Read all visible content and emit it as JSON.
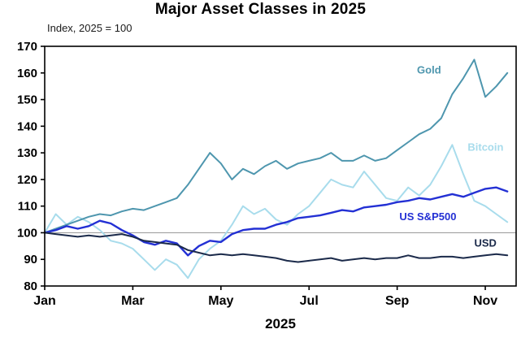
{
  "chart_data": {
    "type": "line",
    "title": "Major Asset Classes in 2025",
    "subtitle": "Index, 2025 = 100",
    "xlabel": "2025",
    "ylim": [
      80,
      170
    ],
    "yticks": [
      80,
      90,
      100,
      110,
      120,
      130,
      140,
      150,
      160,
      170
    ],
    "xlim": [
      0,
      10.7
    ],
    "x_unit": "months since Jan 1 2025 (0.25 step, approx weekly)",
    "xticks": [
      {
        "pos": 0,
        "label": "Jan"
      },
      {
        "pos": 2,
        "label": "Mar"
      },
      {
        "pos": 4,
        "label": "May"
      },
      {
        "pos": 6,
        "label": "Jul"
      },
      {
        "pos": 8,
        "label": "Sep"
      },
      {
        "pos": 10,
        "label": "Nov"
      }
    ],
    "reference_line": 100,
    "grid": "single horizontal line at 100 only",
    "legend_position": "inline labels near line ends",
    "x": [
      0,
      0.25,
      0.5,
      0.75,
      1,
      1.25,
      1.5,
      1.75,
      2,
      2.25,
      2.5,
      2.75,
      3,
      3.25,
      3.5,
      3.75,
      4,
      4.25,
      4.5,
      4.75,
      5,
      5.25,
      5.5,
      5.75,
      6,
      6.25,
      6.5,
      6.75,
      7,
      7.25,
      7.5,
      7.75,
      8,
      8.25,
      8.5,
      8.75,
      9,
      9.25,
      9.5,
      9.75,
      10,
      10.25,
      10.5
    ],
    "series": [
      {
        "name": "Bitcoin",
        "color": "#a8dcec",
        "width": 2,
        "label": {
          "x": 9.6,
          "y": 132
        },
        "values": [
          100,
          107,
          103,
          106,
          104,
          101,
          97,
          96,
          94,
          90,
          86,
          90,
          88,
          83,
          90,
          94,
          97,
          103,
          110,
          107,
          109,
          105,
          103,
          107,
          110,
          115,
          120,
          118,
          117,
          123,
          118,
          113,
          112,
          117,
          114,
          118,
          125,
          133,
          122,
          112,
          110,
          107,
          104
        ]
      },
      {
        "name": "Gold",
        "color": "#4e96ae",
        "width": 2,
        "label": {
          "x": 8.45,
          "y": 161
        },
        "values": [
          100,
          101.5,
          103,
          104.5,
          106,
          107,
          106.5,
          108,
          109,
          108.5,
          110,
          111.5,
          113,
          118,
          124,
          130,
          126,
          120,
          124,
          122,
          125,
          127,
          124,
          126,
          127,
          128,
          130,
          127,
          127,
          129,
          127,
          128,
          131,
          134,
          137,
          139,
          143,
          152,
          158,
          165,
          151,
          155,
          160
        ]
      },
      {
        "name": "US S&P500",
        "color": "#2330d4",
        "width": 2.4,
        "label": {
          "x": 8.05,
          "y": 106
        },
        "values": [
          100,
          101,
          102.5,
          101.5,
          102.5,
          104.5,
          103.5,
          101,
          99,
          96.5,
          95.5,
          97,
          96,
          91.5,
          95,
          97,
          96.5,
          99.5,
          101,
          101.5,
          101.5,
          103,
          104,
          105.5,
          106,
          106.5,
          107.5,
          108.5,
          108,
          109.5,
          110,
          110.5,
          111.5,
          112,
          113,
          112.5,
          113.5,
          114.5,
          113.5,
          115,
          116.5,
          117,
          115.5
        ]
      },
      {
        "name": "USD",
        "color": "#1b2a4a",
        "width": 2,
        "label": {
          "x": 9.75,
          "y": 96
        },
        "values": [
          100,
          99.5,
          99,
          98.5,
          99,
          98.5,
          99,
          99.5,
          98.5,
          97,
          96.5,
          96,
          95.5,
          93.5,
          92.5,
          91.5,
          92,
          91.5,
          92,
          91.5,
          91,
          90.5,
          89.5,
          89,
          89.5,
          90,
          90.5,
          89.5,
          90,
          90.5,
          90,
          90.5,
          90.5,
          91.5,
          90.5,
          90.5,
          91,
          91,
          90.5,
          91,
          91.5,
          92,
          91.5
        ]
      }
    ]
  }
}
